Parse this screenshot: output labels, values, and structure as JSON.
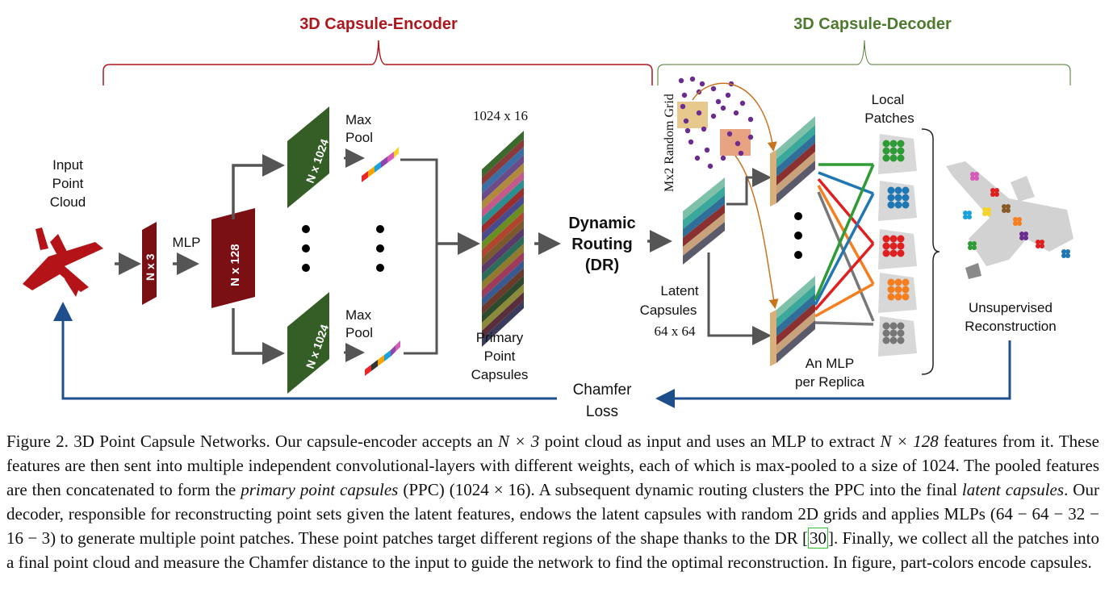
{
  "figure": {
    "encoder_title": "3D Capsule-Encoder",
    "decoder_title": "3D Capsule-Decoder",
    "colors": {
      "encoder": "#b0161e",
      "decoder": "#4e7a2f",
      "arrow_blue": "#1f4e8c",
      "dark_red": "#7a0f14",
      "dark_green": "#355e27"
    },
    "input_label": [
      "Input",
      "Point",
      "Cloud"
    ],
    "nx3": "N x 3",
    "mlp": "MLP",
    "nx128": "N x 128",
    "nx1024_top": "N x 1024",
    "nx1024_bottom": "N x 1024",
    "maxpool_top": [
      "Max",
      "Pool"
    ],
    "maxpool_bottom": [
      "Max",
      "Pool"
    ],
    "ppc_size": "1024 x 16",
    "ppc_label": [
      "Primary",
      "Point",
      "Capsules"
    ],
    "dr_label": [
      "Dynamic",
      "Routing",
      "(DR)"
    ],
    "random_grid": "Mx2 Random Grid",
    "latent_label": [
      "Latent",
      "Capsules"
    ],
    "latent_size": "64 x 64",
    "local_patches": [
      "Local",
      "Patches"
    ],
    "mlp_replica": [
      "An MLP",
      "per Replica"
    ],
    "recon_label": [
      "Unsupervised",
      "Reconstruction"
    ],
    "chamfer": [
      "Chamfer",
      "Loss"
    ]
  },
  "caption": {
    "prefix": "Figure 2. 3D Point Capsule Networks. Our capsule-encoder accepts an ",
    "m1": "N × 3",
    "t1": " point cloud as input and uses an MLP to extract ",
    "m2": "N × 128",
    "t2": " features from it. These features are then sent into multiple independent convolutional-layers with different weights, each of which is max-pooled to a size of ",
    "m3": "1024",
    "t3": ". The pooled features are then concatenated to form the ",
    "i1": "primary point capsules",
    "t4": " (PPC) (",
    "m4": "1024 × 16",
    "t5": "). A subsequent dynamic routing clusters the PPC into the final ",
    "i2": "latent capsules",
    "t6": ". Our decoder, responsible for reconstructing point sets given the latent features, endows the latent capsules with random 2D grids and applies MLPs ",
    "m5": "(64 − 64 − 32 − 16 − 3)",
    "t7": " to generate multiple point patches. These point patches target different regions of the shape thanks to the DR [",
    "ref": "30",
    "t8": "]. Finally, we collect all the patches into a final point cloud and measure the Chamfer distance to the input to guide the network to find the optimal reconstruction. In figure, part-colors encode capsules."
  }
}
